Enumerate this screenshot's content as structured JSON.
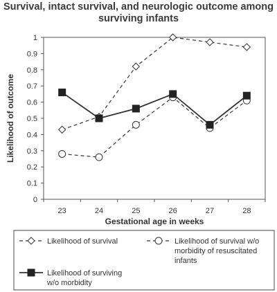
{
  "chart_data": {
    "type": "line",
    "title_lines": [
      "Survival, intact survival, and neurologic outcome among",
      "surviving infants"
    ],
    "xlabel": "Gestational age in weeks",
    "ylabel": "Likelihood of outcome",
    "categories": [
      "23",
      "24",
      "25",
      "26",
      "27",
      "28"
    ],
    "ylim": [
      0,
      1
    ],
    "yticks": [
      "0",
      "0.1",
      "0.2",
      "0.3",
      "0.4",
      "0.5",
      "0.6",
      "0.7",
      "0.8",
      "0.9",
      "1"
    ],
    "grid": false,
    "legend_position": "bottom",
    "series": [
      {
        "name": "Likelihood of survival",
        "legend_lines": [
          "Likelihood of survival"
        ],
        "values": [
          0.43,
          0.51,
          0.82,
          1.0,
          0.97,
          0.94
        ],
        "line_style": "dashed",
        "marker": "diamond-open"
      },
      {
        "name": "Likelihood of survival w/o morbidity of resuscitated infants",
        "legend_lines": [
          "Likelihood of survival w/o",
          "morbidity of resuscitated",
          "infants"
        ],
        "values": [
          0.28,
          0.26,
          0.46,
          0.63,
          0.44,
          0.61
        ],
        "line_style": "dashed",
        "marker": "circle-open"
      },
      {
        "name": "Likelihood of surviving w/o morbidity",
        "legend_lines": [
          "Likelihood of surviving",
          "w/o morbidity"
        ],
        "values": [
          0.66,
          0.5,
          0.56,
          0.65,
          0.46,
          0.64
        ],
        "line_style": "solid",
        "marker": "square-filled"
      }
    ]
  }
}
